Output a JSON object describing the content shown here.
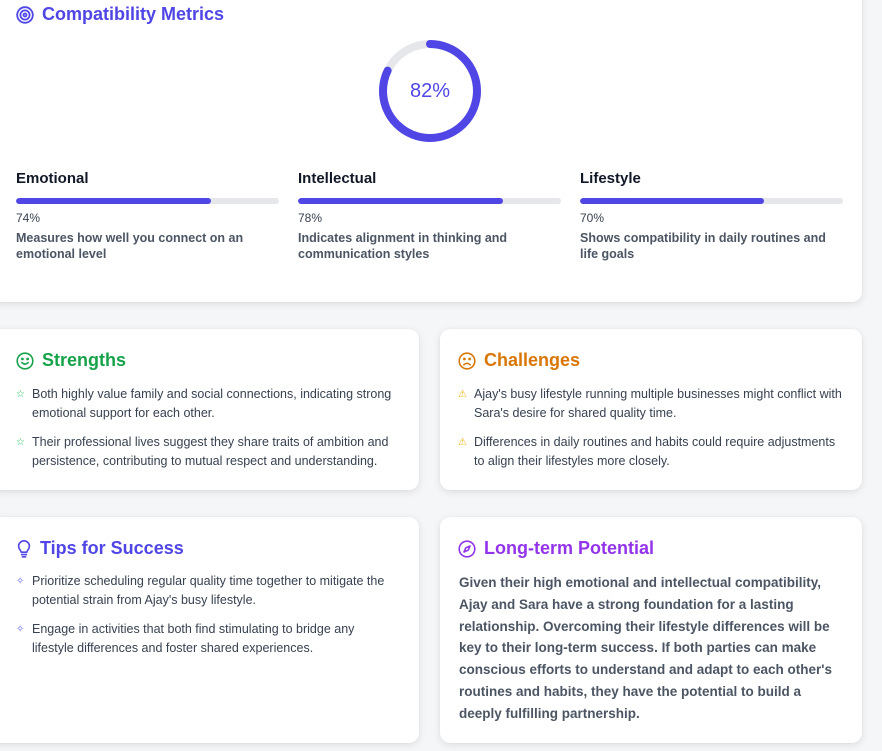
{
  "metrics": {
    "title": "Compatibility Metrics",
    "overall_percent": 82,
    "overall_label": "82%",
    "items": [
      {
        "name": "Emotional",
        "percent": 74,
        "percent_label": "74%",
        "description": "Measures how well you connect on an emotional level"
      },
      {
        "name": "Intellectual",
        "percent": 78,
        "percent_label": "78%",
        "description": "Indicates alignment in thinking and communication styles"
      },
      {
        "name": "Lifestyle",
        "percent": 70,
        "percent_label": "70%",
        "description": "Shows compatibility in daily routines and life goals"
      }
    ],
    "accent_color": "#4f46e5",
    "track_color": "#e5e7eb"
  },
  "strengths": {
    "title": "Strengths",
    "icon": "smile-icon",
    "bullet_icon": "star-icon",
    "color": "#16a34a",
    "items": [
      "Both highly value family and social connections, indicating strong emotional support for each other.",
      "Their professional lives suggest they share traits of ambition and persistence, contributing to mutual respect and understanding."
    ]
  },
  "challenges": {
    "title": "Challenges",
    "icon": "frown-icon",
    "bullet_icon": "warning-icon",
    "color": "#d97706",
    "items": [
      "Ajay's busy lifestyle running multiple businesses might conflict with Sara's desire for shared quality time.",
      "Differences in daily routines and habits could require adjustments to align their lifestyles more closely."
    ]
  },
  "tips": {
    "title": "Tips for Success",
    "icon": "lightbulb-icon",
    "bullet_icon": "sparkle-icon",
    "color": "#4f46e5",
    "items": [
      "Prioritize scheduling regular quality time together to mitigate the potential strain from Ajay's busy lifestyle.",
      "Engage in activities that both find stimulating to bridge any lifestyle differences and foster shared experiences."
    ]
  },
  "potential": {
    "title": "Long-term Potential",
    "icon": "compass-icon",
    "color": "#9333ea",
    "text": "Given their high emotional and intellectual compatibility, Ajay and Sara have a strong foundation for a lasting relationship. Overcoming their lifestyle differences will be key to their long-term success. If both parties can make conscious efforts to understand and adapt to each other's routines and habits, they have the potential to build a deeply fulfilling partnership."
  }
}
